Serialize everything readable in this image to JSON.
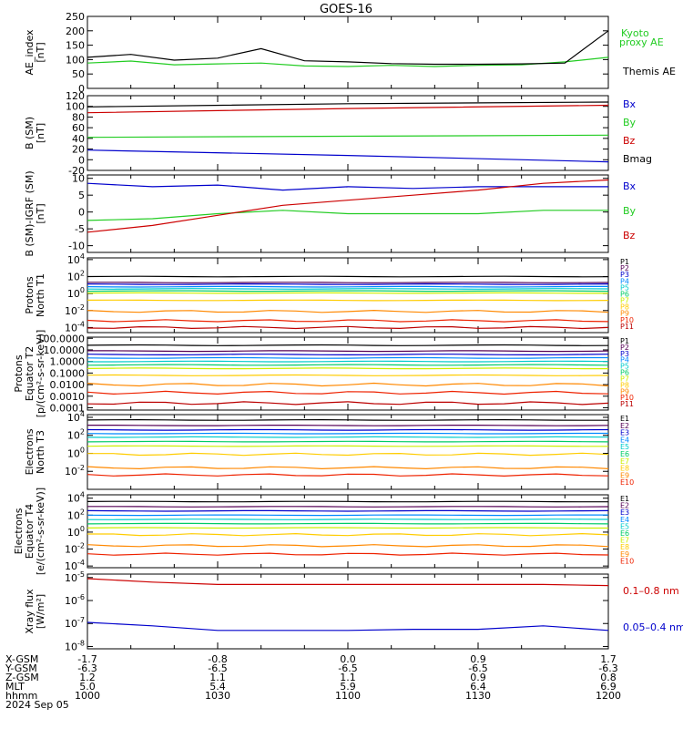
{
  "title": "GOES-16",
  "footer": {
    "rows": [
      {
        "label": "X-GSM",
        "values": [
          "-1.7",
          "-0.8",
          "0.0",
          "0.9",
          "1.7"
        ]
      },
      {
        "label": "Y-GSM",
        "values": [
          "-6.3",
          "-6.5",
          "-6.5",
          "-6.5",
          "-6.3"
        ]
      },
      {
        "label": "Z-GSM",
        "values": [
          "1.2",
          "1.1",
          "1.1",
          "0.9",
          "0.8"
        ]
      },
      {
        "label": "MLT",
        "values": [
          "5.0",
          "5.4",
          "5.9",
          "6.4",
          "6.9"
        ]
      },
      {
        "label": "hhmm",
        "values": [
          "1000",
          "1030",
          "1100",
          "1130",
          "1200"
        ]
      }
    ],
    "date": "2024 Sep 05"
  },
  "colors": {
    "ae_kyoto": "#22cc22",
    "ae_themis": "#000000",
    "bx": "#0000cc",
    "by": "#22cc22",
    "bz": "#cc0000",
    "bmag": "#000000",
    "p_channels": [
      "#000000",
      "#550055",
      "#0000cc",
      "#0088ff",
      "#00cccc",
      "#00cc66",
      "#ccee00",
      "#ffcc00",
      "#ff8800",
      "#ee2200",
      "#bb0000"
    ],
    "xray_long": "#cc0000",
    "xray_short": "#0000cc"
  },
  "chart_data": [
    {
      "id": "ae",
      "type": "line",
      "ylabel": [
        "AE_index",
        "[nT]"
      ],
      "ylim": [
        0,
        250
      ],
      "scale": "linear",
      "yticks": [
        "0",
        "50",
        "100",
        "150",
        "200",
        "250"
      ],
      "x": [
        1000,
        1010,
        1020,
        1030,
        1040,
        1050,
        1100,
        1110,
        1120,
        1130,
        1140,
        1150,
        1200
      ],
      "series": [
        {
          "name": "Kyoto proxy AE",
          "key": "ae_kyoto",
          "values": [
            88,
            95,
            82,
            85,
            88,
            78,
            76,
            80,
            76,
            80,
            82,
            92,
            108
          ]
        },
        {
          "name": "Themis AE",
          "key": "ae_themis",
          "values": [
            108,
            118,
            98,
            105,
            138,
            96,
            92,
            86,
            84,
            84,
            85,
            88,
            200
          ]
        }
      ],
      "legend_rows": [
        [
          "Kyoto",
          "proxy AE"
        ],
        [
          "Themis AE"
        ]
      ]
    },
    {
      "id": "bsm",
      "type": "line",
      "ylabel": [
        "B (SM)",
        "[nT]"
      ],
      "ylim": [
        -20,
        120
      ],
      "scale": "linear",
      "yticks": [
        "-20",
        "0",
        "20",
        "40",
        "60",
        "80",
        "100",
        "120"
      ],
      "x": [
        1000,
        1100,
        1200
      ],
      "series": [
        {
          "name": "Bx",
          "key": "bx",
          "values": [
            18,
            8,
            -4
          ]
        },
        {
          "name": "By",
          "key": "by",
          "values": [
            42,
            44,
            46
          ]
        },
        {
          "name": "Bz",
          "key": "bz",
          "values": [
            88,
            96,
            102
          ]
        },
        {
          "name": "Bmag",
          "key": "bmag",
          "values": [
            99,
            105,
            108
          ]
        }
      ]
    },
    {
      "id": "bigrf",
      "type": "line",
      "ylabel": [
        "B (SM)-IGRF (SM)",
        "[nT]"
      ],
      "ylim": [
        -12,
        11
      ],
      "scale": "linear",
      "yticks": [
        "-10",
        "-5",
        "0",
        "5",
        "10"
      ],
      "x": [
        1000,
        1015,
        1030,
        1045,
        1100,
        1115,
        1130,
        1145,
        1200
      ],
      "series": [
        {
          "name": "Bx",
          "key": "bx",
          "values": [
            8.5,
            7.5,
            8,
            6.5,
            7.5,
            7,
            7.5,
            7.5,
            7.5
          ]
        },
        {
          "name": "By",
          "key": "by",
          "values": [
            -2.5,
            -2,
            -0.5,
            0.5,
            -0.5,
            -0.5,
            -0.5,
            0.5,
            0.5
          ]
        },
        {
          "name": "Bz",
          "key": "bz",
          "values": [
            -6,
            -4,
            -1,
            2,
            3.5,
            5,
            6.5,
            8.5,
            9.5
          ]
        }
      ]
    },
    {
      "id": "prot_n",
      "type": "line",
      "scale": "log",
      "ylabel": [
        "Protons",
        "North T1"
      ],
      "ylim": [
        -4.6,
        4.2
      ],
      "yticks": [
        "10^-4",
        "10^-2",
        "10^0",
        "10^2",
        "10^4"
      ],
      "channels": [
        "P1",
        "P2",
        "P3",
        "P4",
        "P5",
        "P6",
        "P7",
        "P8",
        "P9",
        "P10",
        "P11"
      ],
      "log_levels": [
        2.0,
        1.3,
        1.1,
        0.8,
        0.55,
        0.3,
        0.05,
        -0.8,
        -2.1,
        -3.2,
        -4.0
      ]
    },
    {
      "id": "prot_e",
      "type": "line",
      "scale": "log",
      "ylabel": [
        "Protons",
        "Equator T2",
        "[p/(cm²-s-sr-keV)]"
      ],
      "ylim": [
        -4.2,
        2.1
      ],
      "yticks": [
        "0.0001",
        "0.0010",
        "0.0100",
        "0.1000",
        "1.0000",
        "10.0000",
        "100.0000"
      ],
      "channels": [
        "P1",
        "P2",
        "P3",
        "P4",
        "P5",
        "P6",
        "P7",
        "P8",
        "P9",
        "P10",
        "P11"
      ],
      "log_levels": [
        1.4,
        0.9,
        0.6,
        0.3,
        0.0,
        -0.3,
        -0.6,
        -1.2,
        -2.0,
        -2.7,
        -3.6
      ]
    },
    {
      "id": "elec_n",
      "type": "line",
      "scale": "log",
      "ylabel": [
        "Electrons",
        "North T3"
      ],
      "ylim": [
        -4.0,
        4.3
      ],
      "yticks": [
        "10^-2",
        "10^0",
        "10^2",
        "10^4"
      ],
      "channels": [
        "E1",
        "E2",
        "E3",
        "E4",
        "E5",
        "E6",
        "E7",
        "E8",
        "E9",
        "E10"
      ],
      "log_levels": [
        3.7,
        3.1,
        2.6,
        2.2,
        1.8,
        1.3,
        0.8,
        -0.1,
        -1.6,
        -2.4
      ]
    },
    {
      "id": "elec_e",
      "type": "line",
      "scale": "log",
      "ylabel": [
        "Electrons",
        "Equator T4",
        "[e/(cm²-s-sr-keV)]"
      ],
      "ylim": [
        -4.2,
        4.4
      ],
      "yticks": [
        "10^-4",
        "10^-2",
        "10^0",
        "10^2",
        "10^4"
      ],
      "channels": [
        "E1",
        "E2",
        "E3",
        "E4",
        "E5",
        "E6",
        "E7",
        "E8",
        "E9",
        "E10"
      ],
      "log_levels": [
        3.6,
        3.0,
        2.5,
        2.0,
        1.5,
        1.0,
        0.5,
        -0.3,
        -1.6,
        -2.6
      ]
    },
    {
      "id": "xray",
      "type": "line",
      "scale": "log",
      "ylabel": [
        "Xray flux",
        "[W/m²]"
      ],
      "ylim": [
        -8.1,
        -4.85
      ],
      "yticks": [
        "10^-8",
        "10^-7",
        "10^-6",
        "10^-5"
      ],
      "x": [
        1000,
        1015,
        1030,
        1045,
        1100,
        1115,
        1130,
        1145,
        1200
      ],
      "series": [
        {
          "name": "0.1–0.8 nm",
          "key": "xray_long",
          "log_values": [
            -5.05,
            -5.2,
            -5.3,
            -5.3,
            -5.3,
            -5.3,
            -5.3,
            -5.3,
            -5.35
          ]
        },
        {
          "name": "0.05–0.4 nm",
          "key": "xray_short",
          "log_values": [
            -6.95,
            -7.1,
            -7.3,
            -7.3,
            -7.3,
            -7.25,
            -7.25,
            -7.1,
            -7.3
          ]
        }
      ]
    }
  ]
}
